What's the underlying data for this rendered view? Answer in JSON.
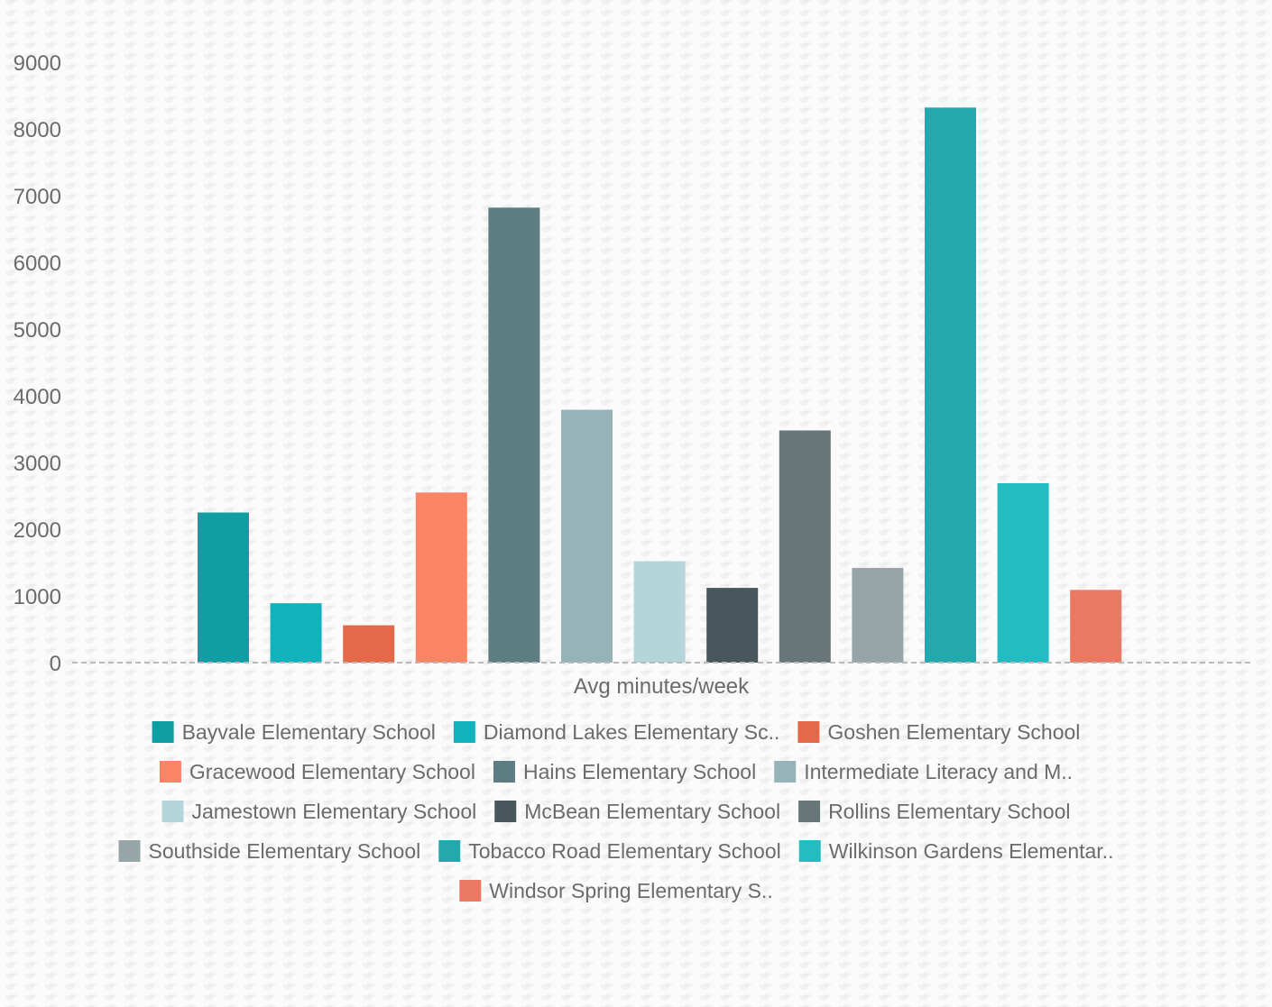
{
  "chart_data": {
    "type": "bar",
    "xlabel": "Avg minutes/week",
    "ylim": [
      0,
      9000
    ],
    "yticks": [
      0,
      1000,
      2000,
      3000,
      4000,
      5000,
      6000,
      7000,
      8000,
      9000
    ],
    "grid": false,
    "legend_position": "bottom",
    "series": [
      {
        "name": "Bayvale Elementary School",
        "value": 2250,
        "color": "#0f9ea3"
      },
      {
        "name": "Diamond Lakes Elementary Sc..",
        "value": 890,
        "color": "#11b2bc"
      },
      {
        "name": "Goshen Elementary School",
        "value": 560,
        "color": "#e4694a"
      },
      {
        "name": "Gracewood Elementary School",
        "value": 2550,
        "color": "#f98466"
      },
      {
        "name": "Hains Elementary School",
        "value": 6820,
        "color": "#5e7d82"
      },
      {
        "name": "Intermediate Literacy and M..",
        "value": 3790,
        "color": "#96b3b7"
      },
      {
        "name": "Jamestown Elementary School",
        "value": 1520,
        "color": "#b5d5d9"
      },
      {
        "name": "McBean Elementary School",
        "value": 1120,
        "color": "#47575c"
      },
      {
        "name": "Rollins Elementary School",
        "value": 3480,
        "color": "#677679"
      },
      {
        "name": "Southside Elementary School",
        "value": 1420,
        "color": "#97a5a9"
      },
      {
        "name": "Tobacco Road Elementary School",
        "value": 8320,
        "color": "#25a8ad"
      },
      {
        "name": "Wilkinson Gardens Elementar..",
        "value": 2690,
        "color": "#24bcc3"
      },
      {
        "name": "Windsor Spring Elementary S..",
        "value": 1090,
        "color": "#eb7862"
      }
    ]
  }
}
